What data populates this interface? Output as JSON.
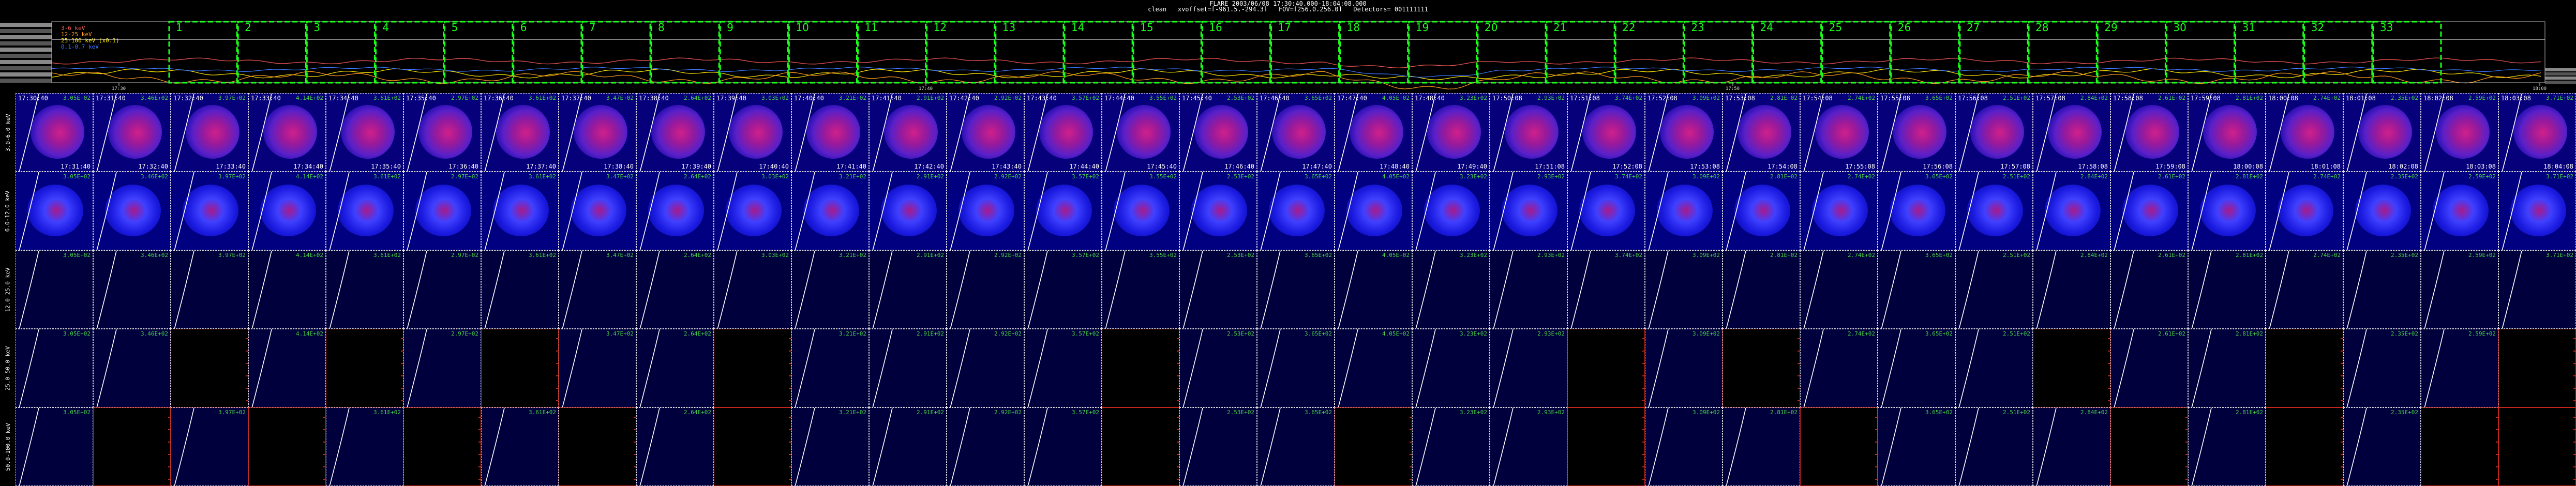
{
  "header": {
    "title": "FLARE 2003/06/08 17:30:40.000-18:04:08.000",
    "subtitle": "clean   xyoffset=[-961.5,-294.3]   FOV=[256.0,256.0]   Detectors= 001111111"
  },
  "lightcurve": {
    "legend": [
      {
        "label": "3-6 keV",
        "color": "#ff5a5a"
      },
      {
        "label": "12-25 keV",
        "color": "#ff9a1e"
      },
      {
        "label": "25-100 keV (x0.1)",
        "color": "#ffe600"
      },
      {
        "label": "0.1-0.7 keV",
        "color": "#3c78ff"
      }
    ],
    "interval_labels": [
      "1",
      "2",
      "3",
      "4",
      "5",
      "6",
      "7",
      "8",
      "9",
      "10",
      "11",
      "12",
      "13",
      "14",
      "15",
      "16",
      "17",
      "18",
      "19",
      "20",
      "21",
      "22",
      "23",
      "24",
      "25",
      "26",
      "27",
      "28",
      "29",
      "30",
      "31",
      "32",
      "33"
    ],
    "time_ticks": [
      "17:30",
      "17:40",
      "17:50",
      "18:00"
    ]
  },
  "rows": [
    {
      "label": "3.0-6.0 keV",
      "style": "disk-bright"
    },
    {
      "label": "6.0-12.0 keV",
      "style": "disk-faint"
    },
    {
      "label": "12.0-25.0 keV",
      "style": "sky"
    },
    {
      "label": "25.0-50.0 keV",
      "style": "mixed"
    },
    {
      "label": "50.0-100.0 keV",
      "style": "mixed"
    }
  ],
  "times_start": [
    "17:30:40",
    "17:31:40",
    "17:32:40",
    "17:33:40",
    "17:34:40",
    "17:35:40",
    "17:36:40",
    "17:37:40",
    "17:38:40",
    "17:39:40",
    "17:40:40",
    "17:41:40",
    "17:42:40",
    "17:43:40",
    "17:44:40",
    "17:45:40",
    "17:46:40",
    "17:47:40",
    "17:48:40",
    "17:50:08",
    "17:51:08",
    "17:52:08",
    "17:53:08",
    "17:54:08",
    "17:55:08",
    "17:56:08",
    "17:57:08",
    "17:58:08",
    "17:59:08",
    "18:00:08",
    "18:01:08",
    "18:02:08",
    "18:03:08"
  ],
  "times_end": [
    "17:31:40",
    "17:32:40",
    "17:33:40",
    "17:34:40",
    "17:35:40",
    "17:36:40",
    "17:37:40",
    "17:38:40",
    "17:39:40",
    "17:40:40",
    "17:41:40",
    "17:42:40",
    "17:43:40",
    "17:44:40",
    "17:45:40",
    "17:46:40",
    "17:47:40",
    "17:48:40",
    "17:49:40",
    "17:51:08",
    "17:52:08",
    "17:53:08",
    "17:54:08",
    "17:55:08",
    "17:56:08",
    "17:57:08",
    "17:58:08",
    "17:59:08",
    "18:00:08",
    "18:01:08",
    "18:02:08",
    "18:03:08",
    "18:04:08"
  ],
  "counts": [
    "3.05E+02",
    "3.46E+02",
    "3.97E+02",
    "4.14E+02",
    "3.61E+02",
    "2.97E+02",
    "3.61E+02",
    "3.47E+02",
    "2.64E+02",
    "3.03E+02",
    "3.21E+02",
    "2.91E+02",
    "2.92E+02",
    "3.57E+02",
    "3.55E+02",
    "2.53E+02",
    "3.65E+02",
    "4.05E+02",
    "3.23E+02",
    "2.93E+02",
    "3.74E+02",
    "3.09E+02",
    "2.81E+02",
    "2.74E+02",
    "3.65E+02",
    "2.51E+02",
    "2.84E+02",
    "2.61E+02",
    "2.81E+02",
    "2.74E+02",
    "2.35E+02",
    "2.59E+02",
    "3.71E+02"
  ],
  "empty_cells": {
    "row3": [
      2,
      4,
      6,
      9,
      14,
      20,
      22,
      26,
      29,
      32
    ],
    "row4": [
      1,
      3,
      5,
      7,
      9,
      14,
      17,
      20,
      23,
      27,
      29,
      31,
      32
    ]
  },
  "colors": {
    "accent_green": "#1aff1a",
    "curve_white": "#ffffff",
    "frame_red": "#c3271b"
  }
}
